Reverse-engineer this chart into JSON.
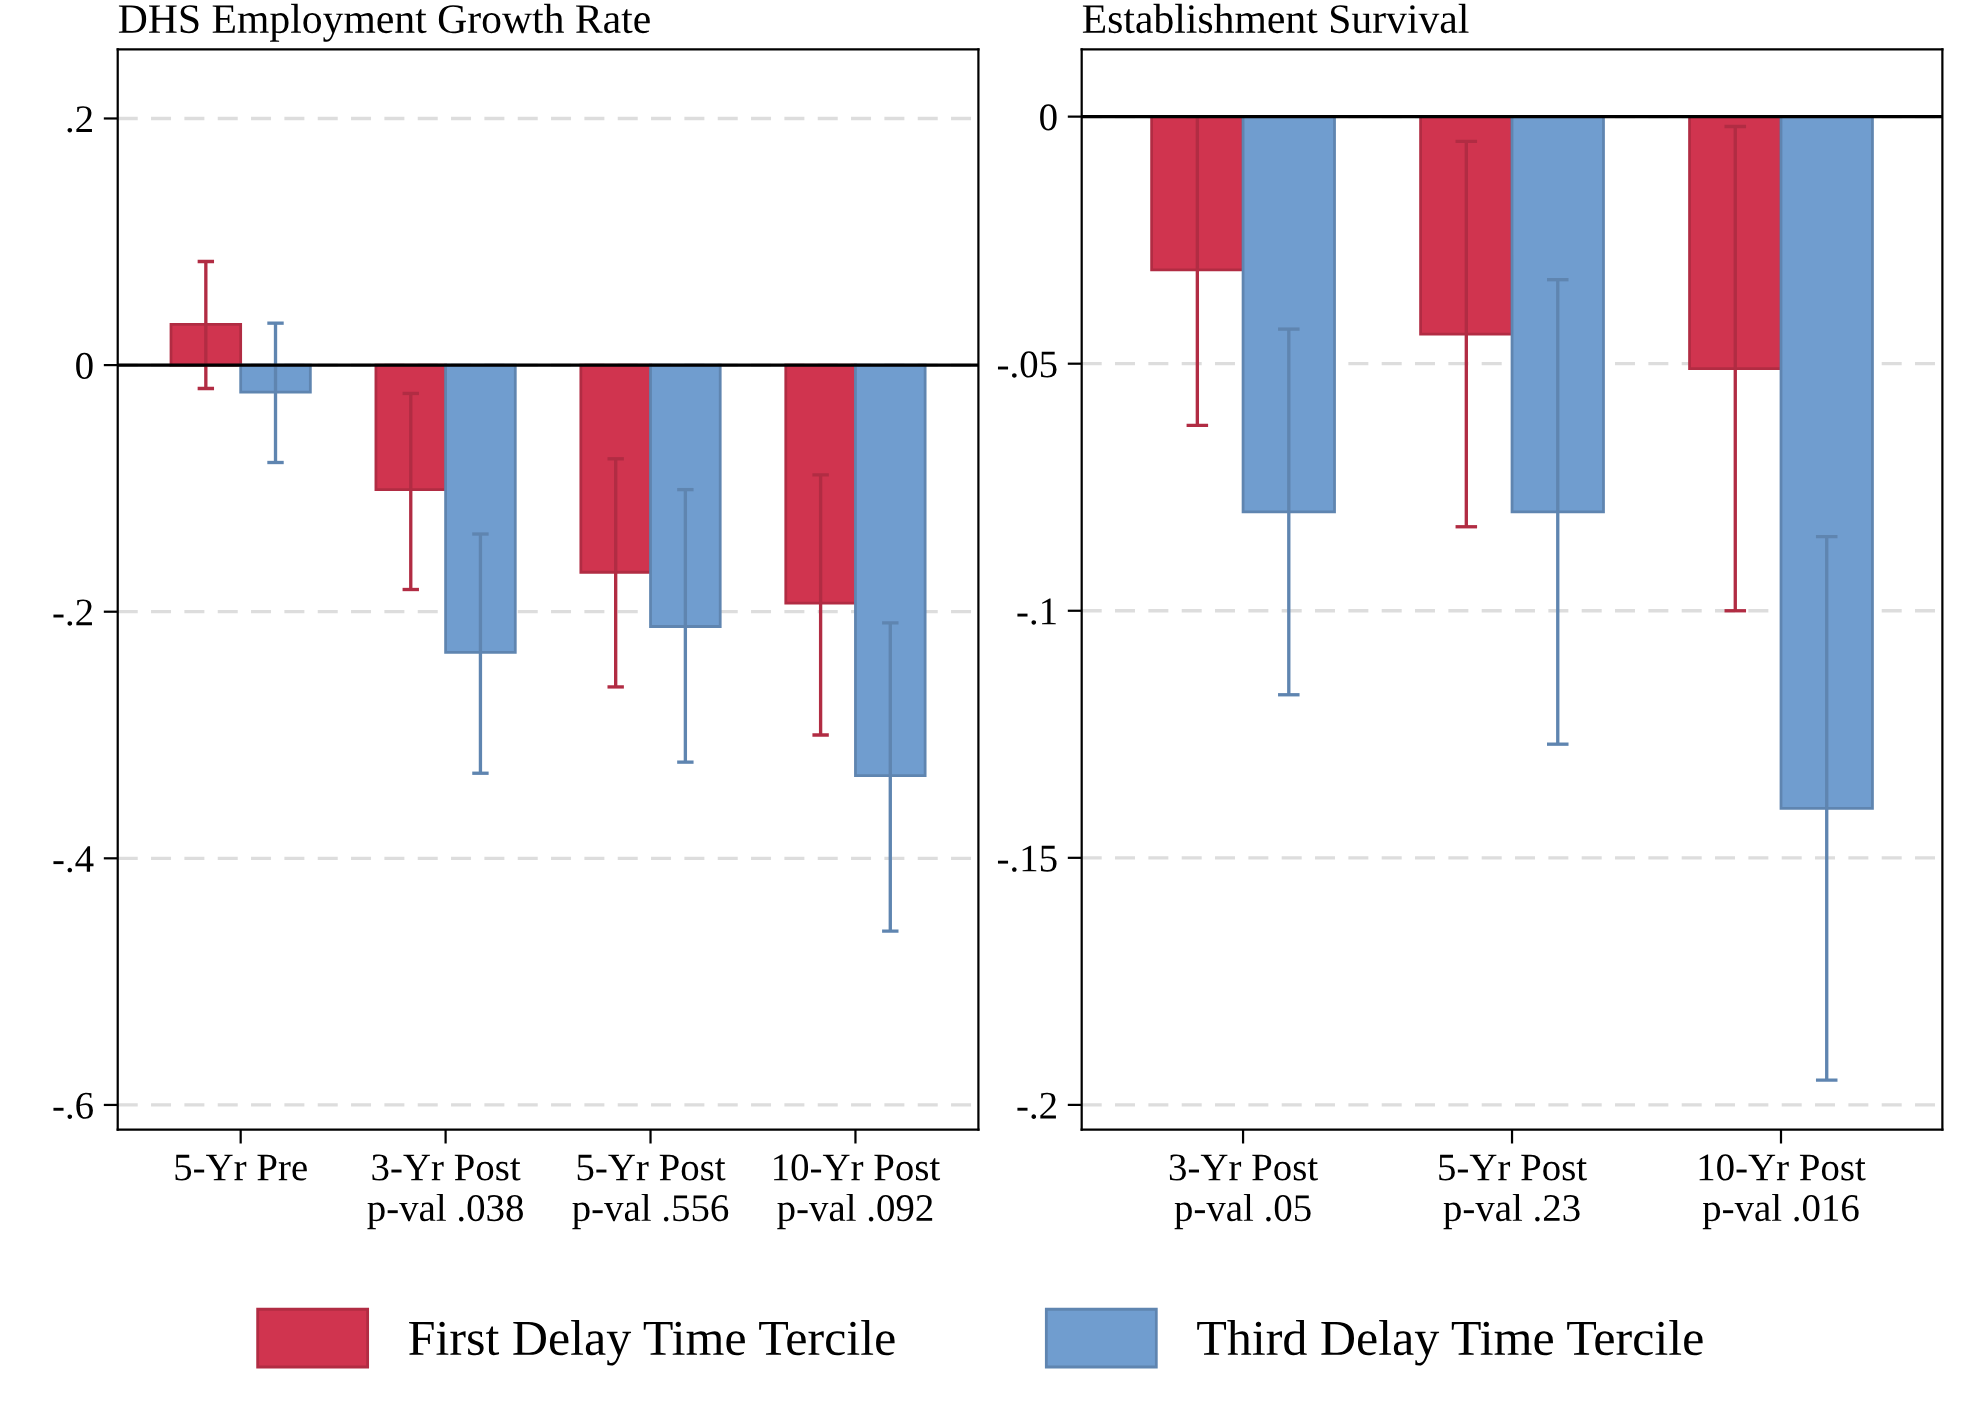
{
  "chart_data": [
    {
      "type": "bar",
      "title": "DHS Employment Growth Rate",
      "categories": [
        "5-Yr Pre",
        "3-Yr Post\np-val .038",
        "5-Yr Post\np-val .556",
        "10-Yr Post\np-val .092"
      ],
      "ylim": [
        -0.62,
        0.256
      ],
      "yticks": [
        {
          "value": 0.2,
          "label": ".2"
        },
        0,
        {
          "value": -0.2,
          "label": "-.2"
        },
        {
          "value": -0.4,
          "label": "-.4"
        },
        {
          "value": -0.6,
          "label": "-.6"
        }
      ],
      "grid": "y",
      "legend": "bottom",
      "ref_lines": [
        {
          "axis": "y",
          "value": 0,
          "label": null,
          "color": "#000000"
        }
      ],
      "series": [
        {
          "name": "First Delay Time Tercile",
          "color": "#d0344f",
          "values": [
            0.033,
            -0.101,
            -0.168,
            -0.193
          ],
          "errors": [
            [
              -0.019,
              0.084
            ],
            [
              -0.182,
              -0.023
            ],
            [
              -0.261,
              -0.076
            ],
            [
              -0.3,
              -0.089
            ]
          ]
        },
        {
          "name": "Third Delay Time Tercile",
          "color": "#709dcf",
          "values": [
            -0.022,
            -0.233,
            -0.212,
            -0.333
          ],
          "errors": [
            [
              -0.079,
              0.034
            ],
            [
              -0.331,
              -0.137
            ],
            [
              -0.322,
              -0.101
            ],
            [
              -0.459,
              -0.209
            ]
          ]
        }
      ]
    },
    {
      "type": "bar",
      "title": "Establishment Survival",
      "categories": [
        "3-Yr Post\np-val .05",
        "5-Yr Post\np-val .23",
        "10-Yr Post\np-val .016"
      ],
      "ylim": [
        -0.205,
        0.0136
      ],
      "yticks": [
        0,
        {
          "value": -0.05,
          "label": "-.05"
        },
        {
          "value": -0.1,
          "label": "-.1"
        },
        {
          "value": -0.15,
          "label": "-.15"
        },
        {
          "value": -0.2,
          "label": "-.2"
        }
      ],
      "grid": "y",
      "ref_lines": [
        {
          "axis": "y",
          "value": 0,
          "label": null,
          "color": "#000000"
        }
      ],
      "series": [
        {
          "color": "#d0344f",
          "values": [
            -0.031,
            -0.044,
            -0.051
          ],
          "errors": [
            [
              -0.0625,
              0.0
            ],
            [
              -0.083,
              -0.005
            ],
            [
              -0.1,
              -0.002
            ]
          ]
        },
        {
          "color": "#709dcf",
          "values": [
            -0.08,
            -0.08,
            -0.14
          ],
          "errors": [
            [
              -0.117,
              -0.043
            ],
            [
              -0.127,
              -0.033
            ],
            [
              -0.195,
              -0.085
            ]
          ]
        }
      ]
    }
  ]
}
